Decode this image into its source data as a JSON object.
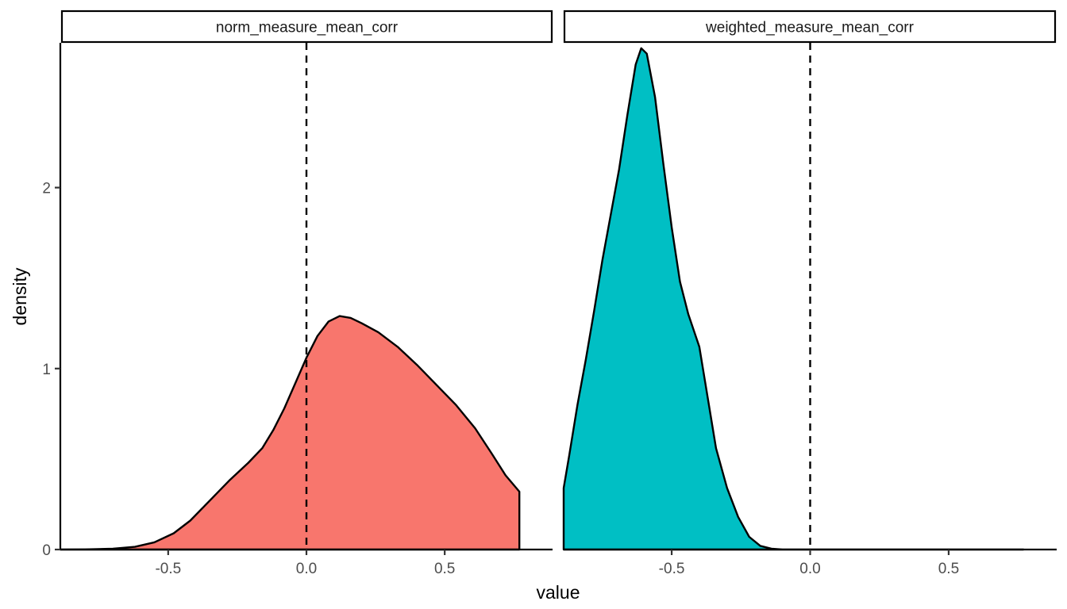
{
  "chart_data": {
    "type": "area",
    "subtype": "faceted-density",
    "xlabel": "value",
    "ylabel": "density",
    "xlim": [
      -0.89,
      0.89
    ],
    "ylim": [
      0,
      2.8
    ],
    "x_ticks": [
      -0.5,
      0.0,
      0.5
    ],
    "x_tick_labels": [
      "-0.5",
      "0.0",
      "0.5"
    ],
    "y_ticks": [
      0,
      1,
      2
    ],
    "y_tick_labels": [
      "0",
      "1",
      "2"
    ],
    "grid": false,
    "legend": "none",
    "reference_line": {
      "x": 0.0,
      "style": "dashed"
    },
    "facets": [
      {
        "label": "norm_measure_mean_corr",
        "fill": "#F8766D",
        "points": [
          [
            -0.89,
            0.0
          ],
          [
            -0.8,
            0.001
          ],
          [
            -0.7,
            0.005
          ],
          [
            -0.62,
            0.015
          ],
          [
            -0.55,
            0.04
          ],
          [
            -0.48,
            0.09
          ],
          [
            -0.42,
            0.16
          ],
          [
            -0.35,
            0.27
          ],
          [
            -0.28,
            0.38
          ],
          [
            -0.21,
            0.48
          ],
          [
            -0.16,
            0.56
          ],
          [
            -0.12,
            0.66
          ],
          [
            -0.08,
            0.78
          ],
          [
            -0.04,
            0.92
          ],
          [
            0.0,
            1.06
          ],
          [
            0.04,
            1.18
          ],
          [
            0.08,
            1.26
          ],
          [
            0.12,
            1.29
          ],
          [
            0.16,
            1.28
          ],
          [
            0.2,
            1.25
          ],
          [
            0.26,
            1.2
          ],
          [
            0.33,
            1.12
          ],
          [
            0.4,
            1.02
          ],
          [
            0.47,
            0.91
          ],
          [
            0.54,
            0.8
          ],
          [
            0.61,
            0.67
          ],
          [
            0.67,
            0.53
          ],
          [
            0.72,
            0.41
          ],
          [
            0.77,
            0.32
          ]
        ]
      },
      {
        "label": "weighted_measure_mean_corr",
        "fill": "#00BFC4",
        "points": [
          [
            -0.89,
            0.34
          ],
          [
            -0.87,
            0.52
          ],
          [
            -0.84,
            0.8
          ],
          [
            -0.81,
            1.05
          ],
          [
            -0.78,
            1.32
          ],
          [
            -0.75,
            1.6
          ],
          [
            -0.72,
            1.85
          ],
          [
            -0.69,
            2.1
          ],
          [
            -0.66,
            2.4
          ],
          [
            -0.63,
            2.68
          ],
          [
            -0.61,
            2.77
          ],
          [
            -0.59,
            2.74
          ],
          [
            -0.56,
            2.5
          ],
          [
            -0.53,
            2.13
          ],
          [
            -0.5,
            1.78
          ],
          [
            -0.47,
            1.48
          ],
          [
            -0.44,
            1.3
          ],
          [
            -0.4,
            1.12
          ],
          [
            -0.37,
            0.84
          ],
          [
            -0.34,
            0.56
          ],
          [
            -0.3,
            0.34
          ],
          [
            -0.26,
            0.18
          ],
          [
            -0.22,
            0.07
          ],
          [
            -0.18,
            0.02
          ],
          [
            -0.14,
            0.005
          ],
          [
            -0.1,
            0.0
          ],
          [
            0.0,
            0.0
          ],
          [
            0.77,
            0.0
          ]
        ]
      }
    ]
  }
}
